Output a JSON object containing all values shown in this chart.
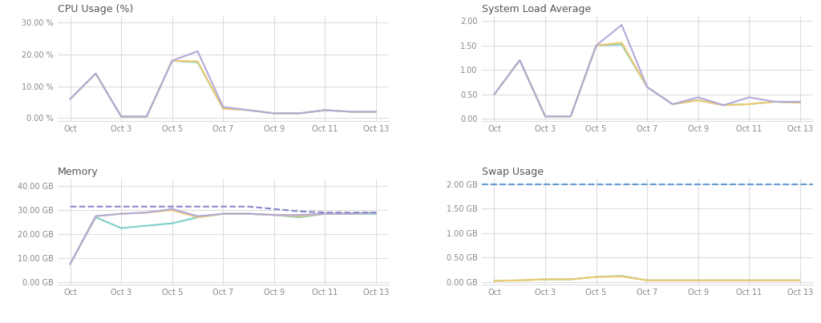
{
  "x_labels": [
    "Oct",
    "Oct 3",
    "Oct 5",
    "Oct 7",
    "Oct 9",
    "Oct 11",
    "Oct 13"
  ],
  "x_tick_positions": [
    0,
    2,
    4,
    6,
    8,
    10,
    12
  ],
  "cpu_title": "CPU Usage (%)",
  "cpu_yticks": [
    0.0,
    10.0,
    20.0,
    30.0
  ],
  "cpu_ytick_labels": [
    "0.00 %",
    "10.00 %",
    "20.00 %",
    "30.00 %"
  ],
  "cpu_ylim": [
    -1,
    32
  ],
  "cpu_lines": [
    {
      "color": "#7ecfc7",
      "x": [
        0,
        1,
        2,
        3,
        4,
        5,
        6,
        7,
        8,
        9,
        10,
        11,
        12
      ],
      "y": [
        6,
        14,
        0.5,
        0.5,
        18,
        17.5,
        3,
        2.5,
        1.5,
        1.5,
        2.5,
        2.0,
        2.0
      ]
    },
    {
      "color": "#f0c96e",
      "x": [
        0,
        1,
        2,
        3,
        4,
        5,
        6,
        7,
        8,
        9,
        10,
        11,
        12
      ],
      "y": [
        6,
        14,
        0.5,
        0.5,
        18,
        17.8,
        3,
        2.5,
        1.5,
        1.5,
        2.5,
        2.0,
        2.0
      ]
    },
    {
      "color": "#b3a9d9",
      "x": [
        0,
        1,
        2,
        3,
        4,
        5,
        6,
        7,
        8,
        9,
        10,
        11,
        12
      ],
      "y": [
        6,
        14,
        0.5,
        0.5,
        18,
        21,
        3.5,
        2.5,
        1.5,
        1.5,
        2.5,
        2.0,
        2.0
      ]
    }
  ],
  "sla_title": "System Load Average",
  "sla_yticks": [
    0.0,
    0.5,
    1.0,
    1.5,
    2.0
  ],
  "sla_ytick_labels": [
    "0.00",
    "0.50",
    "1.00",
    "1.50",
    "2.00"
  ],
  "sla_ylim": [
    -0.05,
    2.1
  ],
  "sla_lines": [
    {
      "color": "#7ecfc7",
      "x": [
        0,
        1,
        2,
        3,
        4,
        5,
        6,
        7,
        8,
        9,
        10,
        11,
        12
      ],
      "y": [
        0.5,
        1.2,
        0.05,
        0.05,
        1.5,
        1.52,
        0.65,
        0.3,
        0.38,
        0.28,
        0.3,
        0.35,
        0.33
      ]
    },
    {
      "color": "#f0c96e",
      "x": [
        0,
        1,
        2,
        3,
        4,
        5,
        6,
        7,
        8,
        9,
        10,
        11,
        12
      ],
      "y": [
        0.5,
        1.2,
        0.05,
        0.05,
        1.5,
        1.56,
        0.65,
        0.3,
        0.38,
        0.28,
        0.3,
        0.35,
        0.33
      ]
    },
    {
      "color": "#b3a9d9",
      "x": [
        0,
        1,
        2,
        3,
        4,
        5,
        6,
        7,
        8,
        9,
        10,
        11,
        12
      ],
      "y": [
        0.5,
        1.2,
        0.05,
        0.05,
        1.5,
        1.92,
        0.65,
        0.3,
        0.44,
        0.28,
        0.44,
        0.35,
        0.35
      ]
    }
  ],
  "mem_title": "Memory",
  "mem_yticks": [
    0.0,
    10.0,
    20.0,
    30.0,
    40.0
  ],
  "mem_ytick_labels": [
    "0.00 GB",
    "10.00 GB",
    "20.00 GB",
    "30.00 GB",
    "40.00 GB"
  ],
  "mem_ylim": [
    -1,
    43
  ],
  "mem_lines": [
    {
      "color": "#7ecfc7",
      "x": [
        0,
        1,
        2,
        3,
        4,
        5,
        6,
        7,
        8,
        9,
        10,
        11,
        12
      ],
      "y": [
        7.5,
        27.0,
        22.5,
        23.5,
        24.5,
        27.0,
        28.5,
        28.5,
        28.0,
        27.0,
        28.5,
        28.5,
        28.5
      ]
    },
    {
      "color": "#f0c96e",
      "x": [
        0,
        1,
        2,
        3,
        4,
        5,
        6,
        7,
        8,
        9,
        10,
        11,
        12
      ],
      "y": [
        7.5,
        27.5,
        28.5,
        29.0,
        30.0,
        27.0,
        28.5,
        28.5,
        28.0,
        27.5,
        28.5,
        28.5,
        29.0
      ]
    },
    {
      "color": "#b3a9d9",
      "x": [
        0,
        1,
        2,
        3,
        4,
        5,
        6,
        7,
        8,
        9,
        10,
        11,
        12
      ],
      "y": [
        7.5,
        27.5,
        28.5,
        29.0,
        30.5,
        27.5,
        28.5,
        28.5,
        28.0,
        28.0,
        28.5,
        28.5,
        29.0
      ]
    }
  ],
  "mem_dashed": {
    "color": "#8888cc",
    "x": [
      0,
      1,
      2,
      3,
      4,
      5,
      6,
      7,
      8,
      9,
      10,
      11,
      12
    ],
    "y": [
      31.5,
      31.5,
      31.5,
      31.5,
      31.5,
      31.5,
      31.5,
      31.5,
      30.5,
      29.5,
      29.0,
      29.0,
      29.0
    ]
  },
  "swap_title": "Swap Usage",
  "swap_yticks": [
    0.0,
    0.5,
    1.0,
    1.5,
    2.0
  ],
  "swap_ytick_labels": [
    "0.00 GB",
    "0.50 GB",
    "1.00 GB",
    "1.50 GB",
    "2.00 GB"
  ],
  "swap_ylim": [
    -0.05,
    2.1
  ],
  "swap_lines": [
    {
      "color": "#7ecfc7",
      "x": [
        0,
        1,
        2,
        3,
        4,
        5,
        6,
        7,
        8,
        9,
        10,
        11,
        12
      ],
      "y": [
        0.02,
        0.03,
        0.05,
        0.05,
        0.1,
        0.12,
        0.03,
        0.03,
        0.03,
        0.03,
        0.03,
        0.03,
        0.03
      ]
    },
    {
      "color": "#f0c96e",
      "x": [
        0,
        1,
        2,
        3,
        4,
        5,
        6,
        7,
        8,
        9,
        10,
        11,
        12
      ],
      "y": [
        0.02,
        0.03,
        0.05,
        0.05,
        0.1,
        0.11,
        0.03,
        0.03,
        0.03,
        0.03,
        0.03,
        0.03,
        0.03
      ]
    }
  ],
  "swap_dashed": {
    "color": "#6699cc",
    "value": 2.0
  },
  "line_width": 1.5,
  "grid_color": "#dddddd",
  "title_color": "#555555",
  "tick_color": "#888888",
  "bg_color": "#ffffff"
}
